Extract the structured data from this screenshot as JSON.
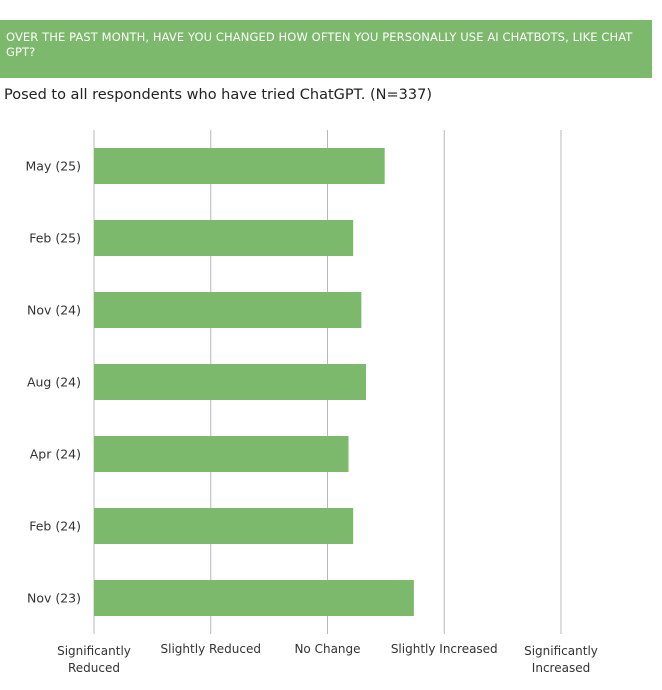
{
  "header": {
    "title": "OVER THE PAST MONTH, HAVE YOU CHANGED HOW OFTEN YOU PERSONALLY USE AI CHATBOTS, LIKE CHAT GPT?"
  },
  "subtitle": "Posed to all respondents who have tried ChatGPT. (N=337)",
  "colors": {
    "header_bg": "#7db96c",
    "bar": "#7db96c",
    "grid": "#b8b8b8"
  },
  "chart_data": {
    "type": "bar",
    "orientation": "horizontal",
    "categories": [
      "May (25)",
      "Feb (25)",
      "Nov (24)",
      "Aug (24)",
      "Apr (24)",
      "Feb (24)",
      "Nov (23)"
    ],
    "values": [
      3.49,
      3.22,
      3.29,
      3.33,
      3.18,
      3.22,
      3.74
    ],
    "xlim": [
      1,
      5
    ],
    "x_ticks": [
      {
        "value": 1,
        "label": "Significantly Reduced"
      },
      {
        "value": 2,
        "label": "Slightly Reduced"
      },
      {
        "value": 3,
        "label": "No Change"
      },
      {
        "value": 4,
        "label": "Slightly Increased"
      },
      {
        "value": 5,
        "label": "Significantly Increased"
      }
    ],
    "grid": true
  }
}
